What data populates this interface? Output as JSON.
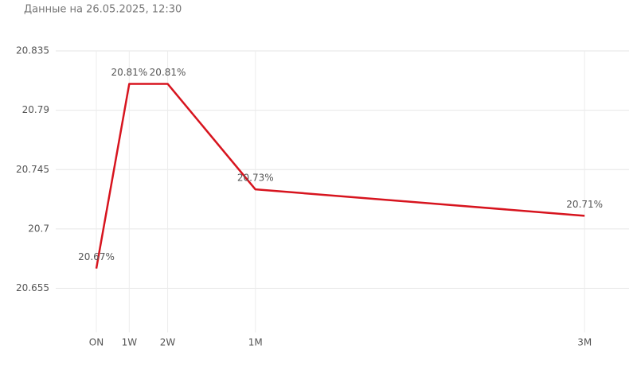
{
  "chart_data": {
    "type": "line",
    "subtitle": "Данные на 26.05.2025, 12:30",
    "x": [
      1,
      7,
      14,
      30,
      90
    ],
    "series": [
      {
        "color": "#d7141e",
        "values": [
          20.67,
          20.81,
          20.81,
          20.73,
          20.71
        ],
        "value_labels": [
          "20.67%",
          "20.81%",
          "20.81%",
          "20.73%",
          "20.71%"
        ]
      }
    ],
    "xlim": [
      -6.4,
      98.1
    ],
    "xticks": [
      {
        "value": 1,
        "label": "ON"
      },
      {
        "value": 7,
        "label": "1W"
      },
      {
        "value": 14,
        "label": "2W"
      },
      {
        "value": 30,
        "label": "1M"
      },
      {
        "value": 90,
        "label": "3M"
      }
    ],
    "ylim": [
      20.63,
      20.835
    ],
    "yticks": [
      20.655,
      20.7,
      20.745,
      20.79,
      20.835
    ],
    "grid": true
  }
}
